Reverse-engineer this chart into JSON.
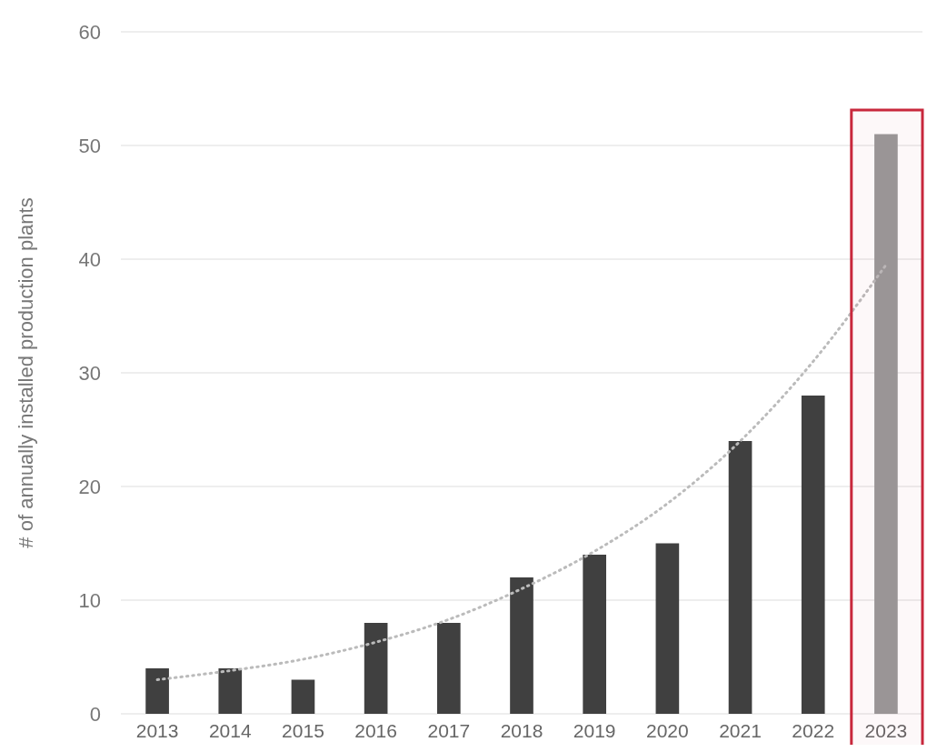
{
  "chart_data": {
    "type": "bar",
    "ylabel": "# of annually installed production plants",
    "categories": [
      "2013",
      "2014",
      "2015",
      "2016",
      "2017",
      "2018",
      "2019",
      "2020",
      "2021",
      "2022",
      "2023"
    ],
    "series": [
      {
        "values": [
          4,
          4,
          3,
          8,
          8,
          12,
          14,
          15,
          24,
          28,
          51
        ],
        "colors": [
          "#404040",
          "#404040",
          "#404040",
          "#404040",
          "#404040",
          "#404040",
          "#404040",
          "#404040",
          "#404040",
          "#404040",
          "#999999"
        ]
      },
      {
        "type": "line",
        "values": [
          3,
          3.8,
          4.8,
          6.3,
          8.3,
          11,
          14.3,
          18.5,
          24,
          31,
          39.5
        ],
        "color": "#bbbbbb",
        "line_style": "dotted",
        "marker": "none"
      }
    ],
    "ylim": [
      0,
      60
    ],
    "yticks": [
      0,
      10,
      20,
      30,
      40,
      50,
      60
    ],
    "grid": "y",
    "bands": [
      {
        "axis": "x",
        "from": "2023",
        "to": "2023",
        "color": "#c8283c"
      }
    ]
  }
}
